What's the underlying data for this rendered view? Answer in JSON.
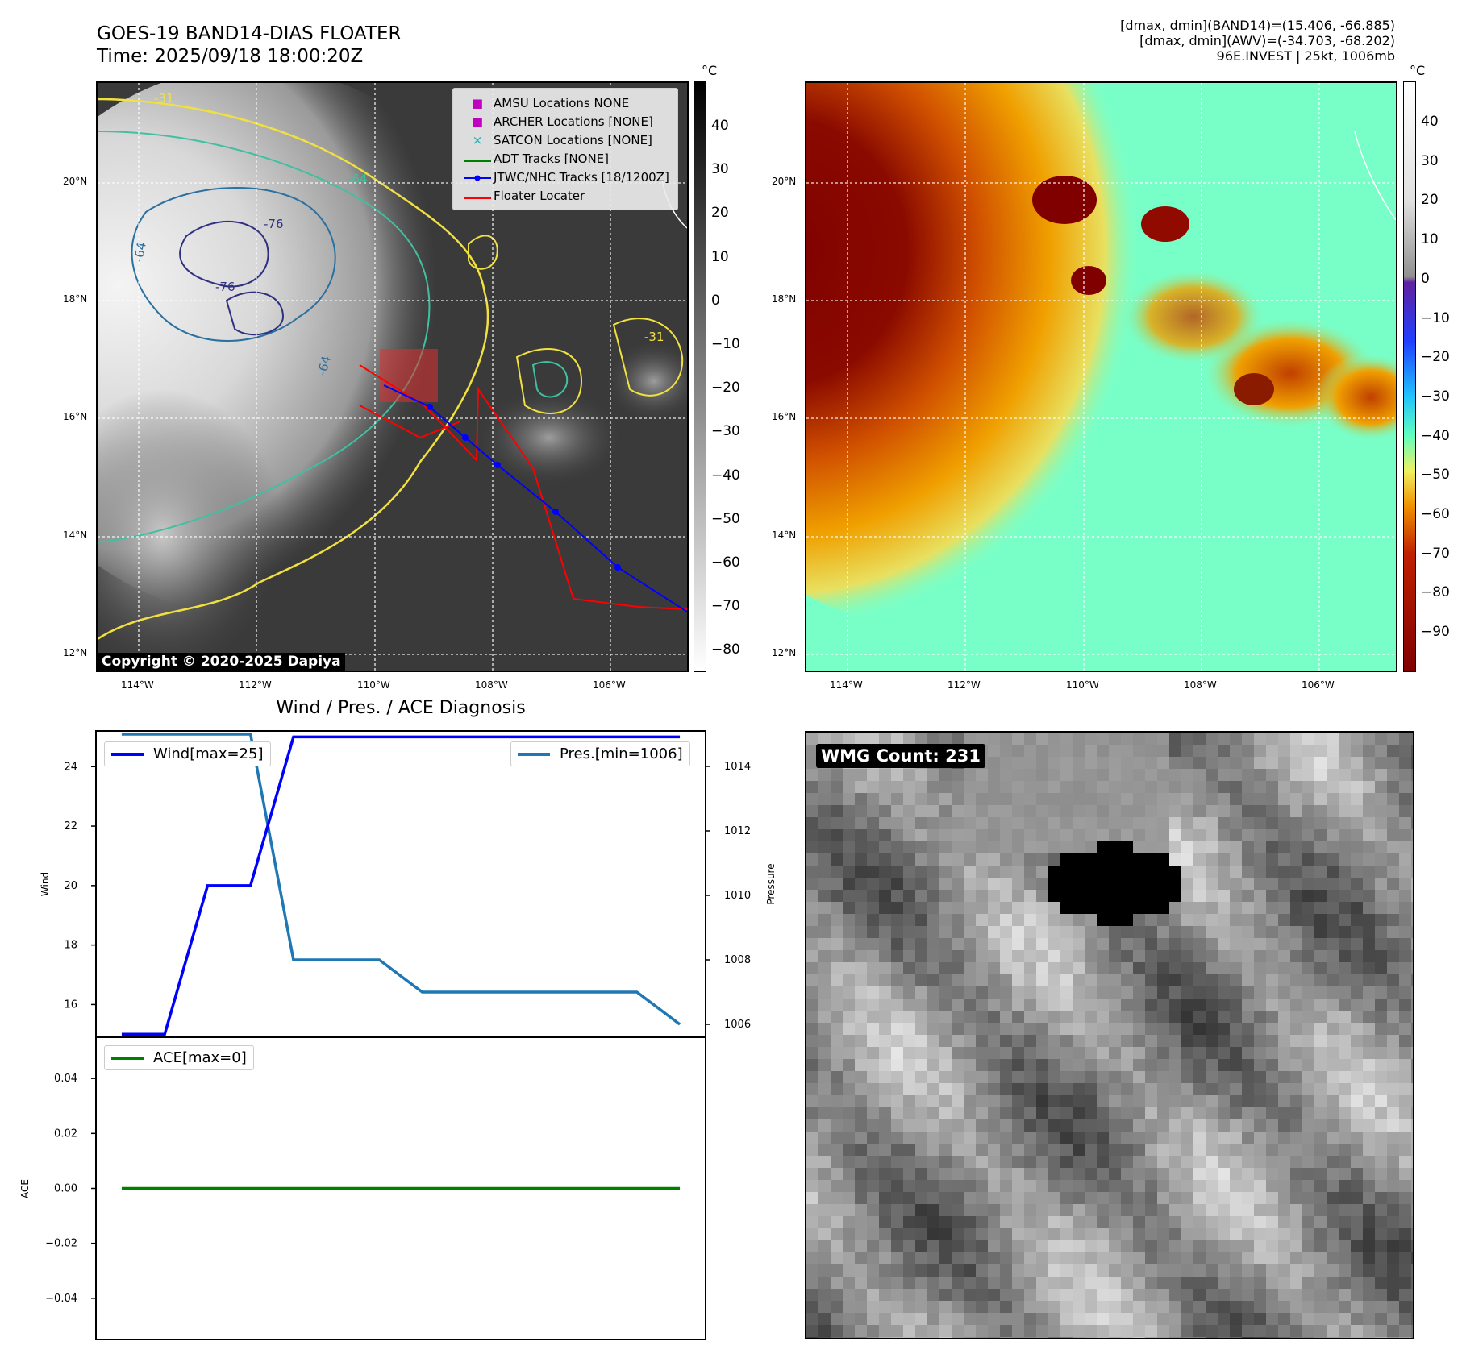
{
  "header": {
    "title_line1": "GOES-19 BAND14-DIAS FLOATER",
    "title_line2": "Time: 2025/09/18 18:00:20Z",
    "info_line1": "[dmax, dmin](BAND14)=(15.406, -66.885)",
    "info_line2": "[dmax, dmin](AWV)=(-34.703, -68.202)",
    "info_line3": "96E.INVEST | 25kt, 1006mb"
  },
  "map": {
    "lat_labels": [
      "20°N",
      "18°N",
      "16°N",
      "14°N",
      "12°N"
    ],
    "lon_labels": [
      "114°W",
      "112°W",
      "110°W",
      "108°W",
      "106°W"
    ],
    "copyright": "Copyright © 2020-2025 Dapiya",
    "contour_labels": [
      "-31",
      "-64",
      "-76",
      "-76",
      "-64",
      "-64",
      "-31"
    ],
    "legend": [
      {
        "label": "AMSU Locations NONE",
        "symbol": "■",
        "color": "#c000c0"
      },
      {
        "label": "ARCHER Locations [NONE]",
        "symbol": "■",
        "color": "#c000c0"
      },
      {
        "label": "SATCON Locations [NONE]",
        "symbol": "×",
        "color": "#00b8b8"
      },
      {
        "label": "ADT Tracks [NONE]",
        "symbol": "line",
        "color": "#008000"
      },
      {
        "label": "JTWC/NHC Tracks [18/1200Z]",
        "symbol": "line-dot",
        "color": "#0000ff"
      },
      {
        "label": "Floater Locater",
        "symbol": "line",
        "color": "#ff0000"
      }
    ],
    "track_color": "#0000ff",
    "floater_color": "#ff0000"
  },
  "colorbar_gray": {
    "unit": "°C",
    "ticks": [
      "40",
      "30",
      "20",
      "10",
      "0",
      "−10",
      "−20",
      "−30",
      "−40",
      "−50",
      "−60",
      "−70",
      "−80"
    ]
  },
  "colorbar_color": {
    "unit": "°C",
    "ticks": [
      "40",
      "30",
      "20",
      "10",
      "0",
      "−10",
      "−20",
      "−30",
      "−40",
      "−50",
      "−60",
      "−70",
      "−80",
      "−90"
    ]
  },
  "wmg": {
    "label": "WMG Count: 231"
  },
  "chart_data": [
    {
      "type": "line",
      "title": "Wind / Pres. / ACE Diagnosis",
      "x": [
        0,
        1,
        2,
        3,
        4,
        5,
        6,
        7,
        8,
        9,
        10,
        11,
        12,
        13
      ],
      "series": [
        {
          "name": "Wind[max=25]",
          "axis": "left",
          "color": "#0000ff",
          "values": [
            15,
            15,
            20,
            20,
            25,
            25,
            25,
            25,
            25,
            25,
            25,
            25,
            25,
            25
          ]
        },
        {
          "name": "Pres.[min=1006]",
          "axis": "right",
          "color": "#1f77b4",
          "values": [
            1015,
            1015,
            1015,
            1015,
            1008,
            1008,
            1008,
            1007,
            1007,
            1007,
            1007,
            1007,
            1007,
            1006
          ]
        }
      ],
      "ylabel": "Wind",
      "ylabel_right": "Pressure",
      "ylim": [
        14.9,
        25.2
      ],
      "ylim_right": [
        1005.6,
        1015.1
      ],
      "yticks": [
        "24",
        "22",
        "20",
        "18",
        "16"
      ],
      "yticks_right": [
        "1014",
        "1012",
        "1010",
        "1008",
        "1006"
      ]
    },
    {
      "type": "line",
      "x": [
        0,
        1,
        2,
        3,
        4,
        5,
        6,
        7,
        8,
        9,
        10,
        11,
        12,
        13
      ],
      "series": [
        {
          "name": "ACE[max=0]",
          "color": "#008000",
          "values": [
            0,
            0,
            0,
            0,
            0,
            0,
            0,
            0,
            0,
            0,
            0,
            0,
            0,
            0
          ]
        }
      ],
      "ylabel": "ACE",
      "ylim": [
        -0.055,
        0.055
      ],
      "yticks": [
        "0.04",
        "0.02",
        "0.00",
        "−0.02",
        "−0.04"
      ]
    }
  ]
}
